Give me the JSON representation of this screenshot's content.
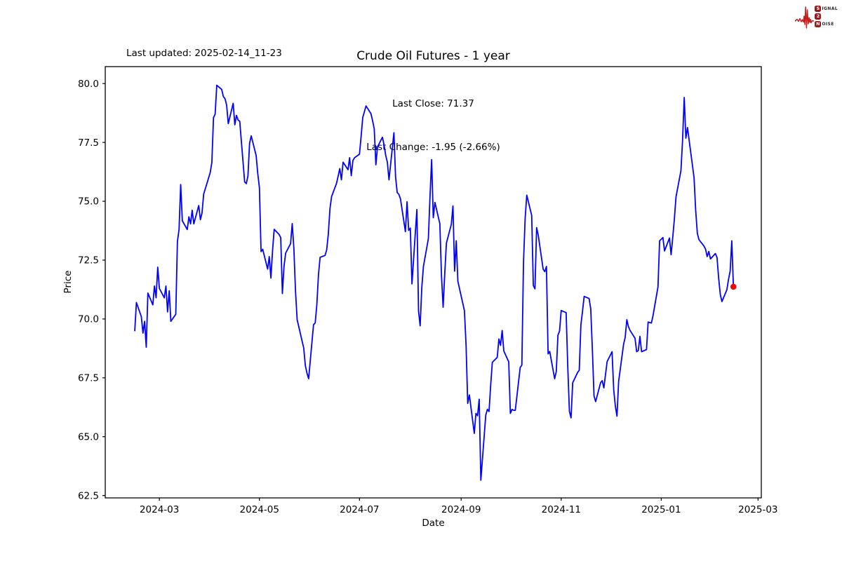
{
  "header": {
    "last_updated": "Last updated: 2025-02-14_11-23"
  },
  "logo": {
    "name": "Signal 2 Noise",
    "accent_color": "#c42020",
    "box_color": "#9b1818",
    "rows": [
      {
        "boxed": "S",
        "rest": "IGNAL"
      },
      {
        "boxed": "2",
        "rest": ""
      },
      {
        "boxed": "N",
        "rest": "OISE"
      }
    ]
  },
  "chart_data": {
    "type": "line",
    "title": "Crude Oil Futures - 1 year",
    "subtitle_line1": "Last Close: 71.37",
    "subtitle_line2": "Last Change: -1.95 (-2.66%)",
    "xlabel": "Date",
    "ylabel": "Price",
    "grid": false,
    "legend": "none",
    "line_color": "#0000ff",
    "marker_color": "#ff0000",
    "xlim": [
      "2024-01-28",
      "2025-03-03"
    ],
    "ylim": [
      62.4,
      80.72
    ],
    "x_ticks": [
      {
        "label": "2024-03",
        "date": "2024-03-01"
      },
      {
        "label": "2024-05",
        "date": "2024-05-01"
      },
      {
        "label": "2024-07",
        "date": "2024-07-01"
      },
      {
        "label": "2024-09",
        "date": "2024-09-01"
      },
      {
        "label": "2024-11",
        "date": "2024-11-01"
      },
      {
        "label": "2025-01",
        "date": "2025-01-01"
      },
      {
        "label": "2025-03",
        "date": "2025-03-01"
      }
    ],
    "y_ticks": [
      {
        "label": "80.0",
        "value": 80.0
      },
      {
        "label": "77.5",
        "value": 77.5
      },
      {
        "label": "75.0",
        "value": 75.0
      },
      {
        "label": "72.5",
        "value": 72.5
      },
      {
        "label": "70.0",
        "value": 70.0
      },
      {
        "label": "67.5",
        "value": 67.5
      },
      {
        "label": "65.0",
        "value": 65.0
      },
      {
        "label": "62.5",
        "value": 62.5
      }
    ],
    "last_close": 71.37,
    "last_change": -1.95,
    "last_change_pct": -2.66,
    "series": [
      {
        "name": "price",
        "points": [
          [
            "2024-02-15",
            69.5
          ],
          [
            "2024-02-16",
            70.7
          ],
          [
            "2024-02-19",
            70.1
          ],
          [
            "2024-02-20",
            69.4
          ],
          [
            "2024-02-21",
            69.9
          ],
          [
            "2024-02-22",
            68.8
          ],
          [
            "2024-02-23",
            71.1
          ],
          [
            "2024-02-26",
            70.6
          ],
          [
            "2024-02-27",
            71.4
          ],
          [
            "2024-02-28",
            70.9
          ],
          [
            "2024-02-29",
            72.2
          ],
          [
            "2024-03-01",
            71.3
          ],
          [
            "2024-03-04",
            70.9
          ],
          [
            "2024-03-05",
            71.4
          ],
          [
            "2024-03-06",
            70.3
          ],
          [
            "2024-03-07",
            71.2
          ],
          [
            "2024-03-08",
            69.9
          ],
          [
            "2024-03-11",
            70.2
          ],
          [
            "2024-03-12",
            73.29
          ],
          [
            "2024-03-13",
            73.8
          ],
          [
            "2024-03-14",
            75.71
          ],
          [
            "2024-03-15",
            74.17
          ],
          [
            "2024-03-18",
            73.8
          ],
          [
            "2024-03-19",
            74.34
          ],
          [
            "2024-03-20",
            74.04
          ],
          [
            "2024-03-21",
            74.62
          ],
          [
            "2024-03-22",
            74.04
          ],
          [
            "2024-03-25",
            74.82
          ],
          [
            "2024-03-26",
            74.22
          ],
          [
            "2024-03-27",
            74.5
          ],
          [
            "2024-03-28",
            75.3
          ],
          [
            "2024-04-01",
            76.22
          ],
          [
            "2024-04-02",
            76.65
          ],
          [
            "2024-04-03",
            78.55
          ],
          [
            "2024-04-04",
            78.7
          ],
          [
            "2024-04-05",
            79.93
          ],
          [
            "2024-04-08",
            79.75
          ],
          [
            "2024-04-09",
            79.45
          ],
          [
            "2024-04-10",
            79.36
          ],
          [
            "2024-04-11",
            79.09
          ],
          [
            "2024-04-12",
            78.3
          ],
          [
            "2024-04-15",
            79.16
          ],
          [
            "2024-04-16",
            78.25
          ],
          [
            "2024-04-17",
            78.65
          ],
          [
            "2024-04-18",
            78.45
          ],
          [
            "2024-04-19",
            78.4
          ],
          [
            "2024-04-22",
            75.82
          ],
          [
            "2024-04-23",
            75.75
          ],
          [
            "2024-04-24",
            76.07
          ],
          [
            "2024-04-25",
            77.46
          ],
          [
            "2024-04-26",
            77.78
          ],
          [
            "2024-04-29",
            76.94
          ],
          [
            "2024-04-30",
            76.17
          ],
          [
            "2024-05-01",
            75.57
          ],
          [
            "2024-05-02",
            72.86
          ],
          [
            "2024-05-03",
            72.96
          ],
          [
            "2024-05-06",
            72.12
          ],
          [
            "2024-05-07",
            72.65
          ],
          [
            "2024-05-08",
            71.74
          ],
          [
            "2024-05-09",
            72.9
          ],
          [
            "2024-05-10",
            73.81
          ],
          [
            "2024-05-13",
            73.59
          ],
          [
            "2024-05-14",
            73.45
          ],
          [
            "2024-05-15",
            71.08
          ],
          [
            "2024-05-16",
            72.24
          ],
          [
            "2024-05-17",
            72.8
          ],
          [
            "2024-05-20",
            73.2
          ],
          [
            "2024-05-21",
            74.05
          ],
          [
            "2024-05-22",
            73.0
          ],
          [
            "2024-05-23",
            71.18
          ],
          [
            "2024-05-24",
            69.97
          ],
          [
            "2024-05-28",
            68.77
          ],
          [
            "2024-05-29",
            68.02
          ],
          [
            "2024-05-30",
            67.7
          ],
          [
            "2024-05-31",
            67.46
          ],
          [
            "2024-06-03",
            69.76
          ],
          [
            "2024-06-04",
            69.83
          ],
          [
            "2024-06-05",
            70.6
          ],
          [
            "2024-06-06",
            71.88
          ],
          [
            "2024-06-07",
            72.62
          ],
          [
            "2024-06-10",
            72.7
          ],
          [
            "2024-06-11",
            72.93
          ],
          [
            "2024-06-12",
            73.6
          ],
          [
            "2024-06-13",
            74.68
          ],
          [
            "2024-06-14",
            75.2
          ],
          [
            "2024-06-17",
            75.76
          ],
          [
            "2024-06-18",
            76.07
          ],
          [
            "2024-06-19",
            76.39
          ],
          [
            "2024-06-20",
            75.91
          ],
          [
            "2024-06-21",
            76.66
          ],
          [
            "2024-06-24",
            76.34
          ],
          [
            "2024-06-25",
            76.85
          ],
          [
            "2024-06-26",
            76.09
          ],
          [
            "2024-06-27",
            76.73
          ],
          [
            "2024-06-28",
            76.85
          ],
          [
            "2024-07-01",
            77.0
          ],
          [
            "2024-07-02",
            77.75
          ],
          [
            "2024-07-03",
            78.56
          ],
          [
            "2024-07-05",
            79.05
          ],
          [
            "2024-07-08",
            78.72
          ],
          [
            "2024-07-09",
            78.42
          ],
          [
            "2024-07-10",
            78.08
          ],
          [
            "2024-07-11",
            76.55
          ],
          [
            "2024-07-12",
            77.31
          ],
          [
            "2024-07-15",
            77.72
          ],
          [
            "2024-07-16",
            77.39
          ],
          [
            "2024-07-17",
            76.95
          ],
          [
            "2024-07-18",
            76.66
          ],
          [
            "2024-07-19",
            75.91
          ],
          [
            "2024-07-22",
            77.91
          ],
          [
            "2024-07-23",
            76.04
          ],
          [
            "2024-07-24",
            75.37
          ],
          [
            "2024-07-25",
            75.3
          ],
          [
            "2024-07-26",
            75.1
          ],
          [
            "2024-07-29",
            73.71
          ],
          [
            "2024-07-30",
            74.98
          ],
          [
            "2024-07-31",
            73.76
          ],
          [
            "2024-08-01",
            73.86
          ],
          [
            "2024-08-02",
            71.49
          ],
          [
            "2024-08-05",
            74.65
          ],
          [
            "2024-08-06",
            70.35
          ],
          [
            "2024-08-07",
            69.71
          ],
          [
            "2024-08-08",
            71.34
          ],
          [
            "2024-08-09",
            72.23
          ],
          [
            "2024-08-12",
            73.41
          ],
          [
            "2024-08-13",
            75.19
          ],
          [
            "2024-08-14",
            76.77
          ],
          [
            "2024-08-15",
            74.3
          ],
          [
            "2024-08-16",
            74.95
          ],
          [
            "2024-08-19",
            74.05
          ],
          [
            "2024-08-20",
            71.84
          ],
          [
            "2024-08-21",
            70.5
          ],
          [
            "2024-08-22",
            71.93
          ],
          [
            "2024-08-23",
            73.22
          ],
          [
            "2024-08-26",
            74.02
          ],
          [
            "2024-08-27",
            74.8
          ],
          [
            "2024-08-28",
            72.03
          ],
          [
            "2024-08-29",
            73.32
          ],
          [
            "2024-08-30",
            71.6
          ],
          [
            "2024-09-03",
            70.35
          ],
          [
            "2024-09-04",
            68.87
          ],
          [
            "2024-09-05",
            66.41
          ],
          [
            "2024-09-06",
            66.77
          ],
          [
            "2024-09-09",
            65.14
          ],
          [
            "2024-09-10",
            65.99
          ],
          [
            "2024-09-11",
            65.89
          ],
          [
            "2024-09-12",
            66.59
          ],
          [
            "2024-09-13",
            63.15
          ],
          [
            "2024-09-16",
            65.92
          ],
          [
            "2024-09-17",
            66.16
          ],
          [
            "2024-09-18",
            66.07
          ],
          [
            "2024-09-19",
            67.19
          ],
          [
            "2024-09-20",
            68.16
          ],
          [
            "2024-09-23",
            68.37
          ],
          [
            "2024-09-24",
            69.15
          ],
          [
            "2024-09-25",
            68.88
          ],
          [
            "2024-09-26",
            69.51
          ],
          [
            "2024-09-27",
            68.64
          ],
          [
            "2024-09-30",
            68.18
          ],
          [
            "2024-10-01",
            65.99
          ],
          [
            "2024-10-02",
            66.16
          ],
          [
            "2024-10-03",
            66.12
          ],
          [
            "2024-10-04",
            66.12
          ],
          [
            "2024-10-07",
            67.94
          ],
          [
            "2024-10-08",
            68.04
          ],
          [
            "2024-10-09",
            72.38
          ],
          [
            "2024-10-10",
            74.26
          ],
          [
            "2024-10-11",
            75.26
          ],
          [
            "2024-10-14",
            74.4
          ],
          [
            "2024-10-15",
            71.42
          ],
          [
            "2024-10-16",
            71.28
          ],
          [
            "2024-10-17",
            73.88
          ],
          [
            "2024-10-18",
            73.56
          ],
          [
            "2024-10-21",
            72.11
          ],
          [
            "2024-10-22",
            72.01
          ],
          [
            "2024-10-23",
            72.23
          ],
          [
            "2024-10-24",
            68.52
          ],
          [
            "2024-10-25",
            68.62
          ],
          [
            "2024-10-28",
            67.46
          ],
          [
            "2024-10-29",
            67.77
          ],
          [
            "2024-10-30",
            69.31
          ],
          [
            "2024-10-31",
            69.49
          ],
          [
            "2024-11-01",
            70.36
          ],
          [
            "2024-11-04",
            70.27
          ],
          [
            "2024-11-05",
            67.97
          ],
          [
            "2024-11-06",
            66.08
          ],
          [
            "2024-11-07",
            65.8
          ],
          [
            "2024-11-08",
            67.29
          ],
          [
            "2024-11-11",
            67.73
          ],
          [
            "2024-11-12",
            67.82
          ],
          [
            "2024-11-13",
            69.75
          ],
          [
            "2024-11-14",
            70.33
          ],
          [
            "2024-11-15",
            70.96
          ],
          [
            "2024-11-18",
            70.87
          ],
          [
            "2024-11-19",
            70.43
          ],
          [
            "2024-11-20",
            68.7
          ],
          [
            "2024-11-21",
            66.73
          ],
          [
            "2024-11-22",
            66.49
          ],
          [
            "2024-11-25",
            67.29
          ],
          [
            "2024-11-26",
            67.38
          ],
          [
            "2024-11-27",
            67.07
          ],
          [
            "2024-11-29",
            68.19
          ],
          [
            "2024-12-02",
            68.61
          ],
          [
            "2024-12-03",
            67.0
          ],
          [
            "2024-12-04",
            66.3
          ],
          [
            "2024-12-05",
            65.87
          ],
          [
            "2024-12-06",
            67.34
          ],
          [
            "2024-12-09",
            68.91
          ],
          [
            "2024-12-10",
            69.22
          ],
          [
            "2024-12-11",
            69.97
          ],
          [
            "2024-12-12",
            69.67
          ],
          [
            "2024-12-13",
            69.51
          ],
          [
            "2024-12-16",
            69.18
          ],
          [
            "2024-12-17",
            68.61
          ],
          [
            "2024-12-18",
            68.66
          ],
          [
            "2024-12-19",
            69.26
          ],
          [
            "2024-12-20",
            68.61
          ],
          [
            "2024-12-23",
            68.7
          ],
          [
            "2024-12-24",
            69.87
          ],
          [
            "2024-12-26",
            69.83
          ],
          [
            "2024-12-27",
            70.15
          ],
          [
            "2024-12-30",
            71.36
          ],
          [
            "2024-12-31",
            73.32
          ],
          [
            "2025-01-02",
            73.46
          ],
          [
            "2025-01-03",
            72.89
          ],
          [
            "2025-01-06",
            73.44
          ],
          [
            "2025-01-07",
            72.73
          ],
          [
            "2025-01-08",
            73.46
          ],
          [
            "2025-01-09",
            74.25
          ],
          [
            "2025-01-10",
            75.19
          ],
          [
            "2025-01-13",
            76.3
          ],
          [
            "2025-01-14",
            77.6
          ],
          [
            "2025-01-15",
            79.41
          ],
          [
            "2025-01-16",
            77.68
          ],
          [
            "2025-01-17",
            78.13
          ],
          [
            "2025-01-21",
            76.0
          ],
          [
            "2025-01-22",
            74.6
          ],
          [
            "2025-01-23",
            73.64
          ],
          [
            "2025-01-24",
            73.37
          ],
          [
            "2025-01-27",
            73.1
          ],
          [
            "2025-01-28",
            72.97
          ],
          [
            "2025-01-29",
            72.65
          ],
          [
            "2025-01-30",
            72.87
          ],
          [
            "2025-01-31",
            72.55
          ],
          [
            "2025-02-03",
            72.78
          ],
          [
            "2025-02-04",
            72.61
          ],
          [
            "2025-02-05",
            71.73
          ],
          [
            "2025-02-06",
            71.04
          ],
          [
            "2025-02-07",
            70.74
          ],
          [
            "2025-02-10",
            71.24
          ],
          [
            "2025-02-11",
            71.68
          ],
          [
            "2025-02-12",
            72.03
          ],
          [
            "2025-02-13",
            73.32
          ],
          [
            "2025-02-14",
            71.37
          ]
        ]
      }
    ]
  }
}
